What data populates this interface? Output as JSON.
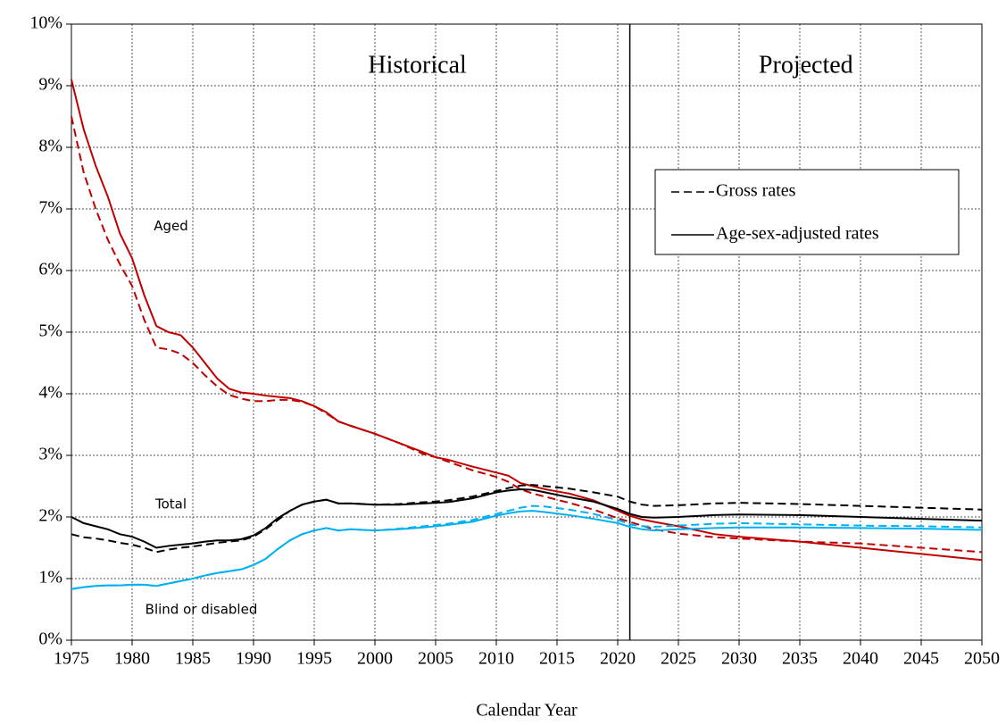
{
  "chart_data": {
    "type": "line",
    "x_label": "Calendar Year",
    "x": [
      1975,
      1976,
      1977,
      1978,
      1979,
      1980,
      1981,
      1982,
      1983,
      1984,
      1985,
      1986,
      1987,
      1988,
      1989,
      1990,
      1991,
      1992,
      1993,
      1994,
      1995,
      1996,
      1997,
      1998,
      2000,
      2002,
      2004,
      2005,
      2006,
      2008,
      2010,
      2011,
      2012,
      2013,
      2014,
      2016,
      2018,
      2020,
      2021,
      2022,
      2023,
      2025,
      2028,
      2030,
      2035,
      2040,
      2045,
      2050
    ],
    "series": [
      {
        "color": "#c00000",
        "dashed": true,
        "values": [
          8.5,
          7.6,
          7.0,
          6.5,
          6.1,
          5.75,
          5.2,
          4.75,
          4.72,
          4.65,
          4.5,
          4.3,
          4.12,
          3.98,
          3.92,
          3.88,
          3.88,
          3.9,
          3.9,
          3.87,
          3.8,
          3.68,
          3.55,
          3.48,
          3.35,
          3.2,
          3.02,
          2.97,
          2.9,
          2.76,
          2.65,
          2.57,
          2.45,
          2.38,
          2.33,
          2.23,
          2.12,
          1.98,
          1.92,
          1.86,
          1.8,
          1.73,
          1.67,
          1.65,
          1.6,
          1.57,
          1.5,
          1.43
        ]
      },
      {
        "color": "#c00000",
        "dashed": false,
        "values": [
          9.1,
          8.3,
          7.7,
          7.2,
          6.6,
          6.2,
          5.6,
          5.1,
          5.0,
          4.95,
          4.75,
          4.5,
          4.25,
          4.08,
          4.02,
          4.0,
          3.97,
          3.95,
          3.93,
          3.88,
          3.8,
          3.7,
          3.55,
          3.48,
          3.35,
          3.2,
          3.05,
          2.97,
          2.93,
          2.82,
          2.72,
          2.67,
          2.55,
          2.5,
          2.45,
          2.38,
          2.27,
          2.1,
          2.02,
          1.96,
          1.92,
          1.85,
          1.72,
          1.68,
          1.6,
          1.5,
          1.4,
          1.3
        ]
      },
      {
        "color": "#000000",
        "dashed": true,
        "values": [
          1.72,
          1.67,
          1.65,
          1.62,
          1.58,
          1.55,
          1.5,
          1.43,
          1.47,
          1.5,
          1.52,
          1.55,
          1.58,
          1.6,
          1.62,
          1.68,
          1.8,
          1.95,
          2.1,
          2.2,
          2.25,
          2.28,
          2.22,
          2.22,
          2.2,
          2.21,
          2.24,
          2.25,
          2.27,
          2.33,
          2.42,
          2.47,
          2.51,
          2.52,
          2.5,
          2.46,
          2.4,
          2.33,
          2.25,
          2.2,
          2.18,
          2.19,
          2.22,
          2.23,
          2.21,
          2.18,
          2.15,
          2.12
        ]
      },
      {
        "color": "#000000",
        "dashed": false,
        "values": [
          2.0,
          1.9,
          1.85,
          1.8,
          1.72,
          1.68,
          1.6,
          1.5,
          1.53,
          1.55,
          1.57,
          1.6,
          1.62,
          1.62,
          1.64,
          1.7,
          1.82,
          1.98,
          2.1,
          2.2,
          2.25,
          2.28,
          2.22,
          2.22,
          2.2,
          2.2,
          2.22,
          2.23,
          2.24,
          2.3,
          2.4,
          2.43,
          2.45,
          2.44,
          2.4,
          2.32,
          2.25,
          2.13,
          2.05,
          2.0,
          1.99,
          2.0,
          2.03,
          2.04,
          2.03,
          2.0,
          1.97,
          1.94
        ]
      },
      {
        "color": "#00b0f0",
        "dashed": true,
        "values": [
          0.83,
          0.86,
          0.88,
          0.89,
          0.89,
          0.9,
          0.9,
          0.88,
          0.92,
          0.96,
          1.0,
          1.05,
          1.09,
          1.12,
          1.15,
          1.22,
          1.32,
          1.48,
          1.62,
          1.72,
          1.78,
          1.82,
          1.78,
          1.8,
          1.78,
          1.81,
          1.85,
          1.87,
          1.89,
          1.95,
          2.05,
          2.1,
          2.15,
          2.18,
          2.17,
          2.12,
          2.05,
          1.95,
          1.88,
          1.85,
          1.84,
          1.86,
          1.89,
          1.9,
          1.88,
          1.86,
          1.85,
          1.83
        ]
      },
      {
        "color": "#00b0f0",
        "dashed": false,
        "values": [
          0.83,
          0.86,
          0.88,
          0.89,
          0.89,
          0.9,
          0.9,
          0.88,
          0.92,
          0.96,
          1.0,
          1.05,
          1.09,
          1.12,
          1.15,
          1.22,
          1.32,
          1.48,
          1.62,
          1.72,
          1.78,
          1.82,
          1.78,
          1.8,
          1.78,
          1.8,
          1.83,
          1.85,
          1.87,
          1.92,
          2.02,
          2.06,
          2.09,
          2.1,
          2.08,
          2.03,
          1.97,
          1.9,
          1.84,
          1.8,
          1.78,
          1.8,
          1.82,
          1.83,
          1.83,
          1.82,
          1.81,
          1.79
        ]
      }
    ],
    "legend": {
      "entries": [
        {
          "label": "Gross rates",
          "dashed": true
        },
        {
          "label": "Age-sex-adjusted rates",
          "dashed": false
        }
      ]
    },
    "annotations": [
      {
        "text": "Aged",
        "x": 1983.2,
        "y": 6.72
      },
      {
        "text": "Total",
        "x": 1983.2,
        "y": 2.2
      },
      {
        "text": "Blind or disabled",
        "x": 1985.7,
        "y": 0.49
      }
    ],
    "region_labels": [
      {
        "text": "Historical",
        "x": 2003.5,
        "y": 9.3
      },
      {
        "text": "Projected",
        "x": 2035.5,
        "y": 9.3
      }
    ],
    "divider_x": 2021,
    "xlim": [
      1975,
      2050
    ],
    "xticks": [
      1975,
      1980,
      1985,
      1990,
      1995,
      2000,
      2005,
      2010,
      2015,
      2020,
      2025,
      2030,
      2035,
      2040,
      2045,
      2050
    ],
    "ylim": [
      0,
      10
    ],
    "yticks": [
      {
        "value": 0,
        "label": "0%"
      },
      {
        "value": 1,
        "label": "1%"
      },
      {
        "value": 2,
        "label": "2%"
      },
      {
        "value": 3,
        "label": "3%"
      },
      {
        "value": 4,
        "label": "4%"
      },
      {
        "value": 5,
        "label": "5%"
      },
      {
        "value": 6,
        "label": "6%"
      },
      {
        "value": 7,
        "label": "7%"
      },
      {
        "value": 8,
        "label": "8%"
      },
      {
        "value": 9,
        "label": "9%"
      },
      {
        "value": 10,
        "label": "10%"
      }
    ],
    "grid": true
  }
}
